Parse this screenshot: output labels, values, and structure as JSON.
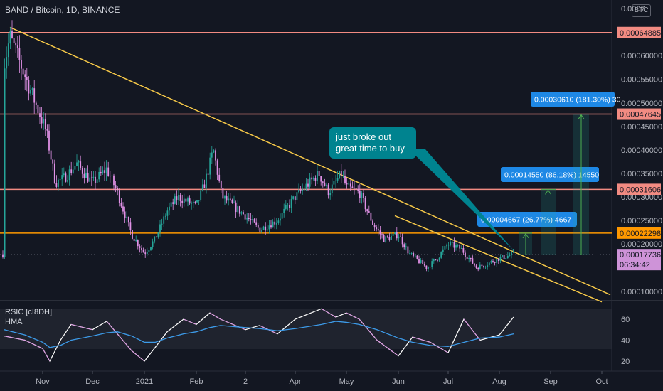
{
  "header": {
    "title": "BAND / Bitcoin, 1D, BINANCE",
    "currency_button": "BTC"
  },
  "indicator": {
    "label1": "RSIC [cI8DH]",
    "label2": "HMA"
  },
  "colors": {
    "background": "#131722",
    "up": "#26a69a",
    "down": "#e091e6",
    "trendline": "#f7c948",
    "resistance": "#f28b82",
    "support": "#ff9800",
    "annotation_bg": "#00838f",
    "measure_bg": "#1e88e5",
    "price_tag": "#ce93d8",
    "hma": "#3d9be9"
  },
  "annotation": {
    "line1": "just broke out",
    "line2": "great time to buy"
  },
  "chart_data": [
    {
      "type": "candlestick",
      "title": "BAND / Bitcoin, 1D, BINANCE",
      "x": [
        "Oct 20",
        "Nov",
        "Dec",
        "2021",
        "Feb",
        "2",
        "Apr",
        "May",
        "Jun",
        "Jul",
        "Aug",
        "Sep",
        "Oct"
      ],
      "xticks": [
        "Nov",
        "Dec",
        "2021",
        "Feb",
        "2",
        "Apr",
        "May",
        "Jun",
        "Jul",
        "Aug",
        "Sep",
        "Oct"
      ],
      "ylim": [
        8e-05,
        0.00068
      ],
      "yticks": [
        "0.0007",
        "0.00060000",
        "0.00055000",
        "0.00050000",
        "0.00045000",
        "0.00040000",
        "0.00035000",
        "0.00030000",
        "0.00025000",
        "0.00020000",
        "0.00010000"
      ],
      "close_path": [
        [
          "Oct 20",
          0.00058
        ],
        [
          "Oct 25",
          0.00064
        ],
        [
          "Nov",
          0.00046
        ],
        [
          "Nov 5",
          0.00044
        ],
        [
          "Nov 12",
          0.00033
        ],
        [
          "Nov 18",
          0.00034
        ],
        [
          "Nov 25",
          0.00037
        ],
        [
          "Dec",
          0.00033
        ],
        [
          "Dec 10",
          0.00036
        ],
        [
          "Dec 18",
          0.00031
        ],
        [
          "Dec 28",
          0.00022
        ],
        [
          "2021",
          0.00018
        ],
        [
          "Jan 8",
          0.00021
        ],
        [
          "Jan 15",
          0.00027
        ],
        [
          "Jan 22",
          0.0003
        ],
        [
          "Feb",
          0.00028
        ],
        [
          "Feb 5",
          0.00033
        ],
        [
          "Feb 10",
          0.0004
        ],
        [
          "Feb 16",
          0.0003
        ],
        [
          "2",
          0.00026
        ],
        [
          "Mar 10",
          0.00023
        ],
        [
          "Mar 20",
          0.00025
        ],
        [
          "Apr",
          0.0003
        ],
        [
          "Apr 8",
          0.00035
        ],
        [
          "Apr 15",
          0.00031
        ],
        [
          "Apr 25",
          0.00035
        ],
        [
          "May",
          0.00032
        ],
        [
          "May 10",
          0.00031
        ],
        [
          "May 18",
          0.00024
        ],
        [
          "May 25",
          0.00021
        ],
        [
          "Jun",
          0.00022
        ],
        [
          "Jun 8",
          0.00018
        ],
        [
          "Jun 18",
          0.00015
        ],
        [
          "Jun 25",
          0.00017
        ],
        [
          "Jul",
          0.0002
        ],
        [
          "Jul 8",
          0.00019
        ],
        [
          "Jul 18",
          0.00015
        ],
        [
          "Jul 25",
          0.00016
        ],
        [
          "Aug",
          0.00017
        ],
        [
          "Aug 8",
          0.000178
        ]
      ],
      "price_levels": [
        {
          "value": "0.00064885",
          "kind": "resistance"
        },
        {
          "value": "0.00047645",
          "kind": "resistance"
        },
        {
          "value": "0.00031606",
          "kind": "resistance"
        },
        {
          "value": "0.00022298",
          "kind": "support"
        }
      ],
      "last_price": {
        "value": "0.00017736",
        "countdown": "06:34:42"
      },
      "measurements": [
        {
          "label": "0.00004667 (26.77%) 4667"
        },
        {
          "label": "0.00014550 (86.18%) 14550"
        },
        {
          "label": "0.00030610 (181.30%) 30"
        }
      ]
    },
    {
      "type": "line",
      "name": "RSIC",
      "ylim": [
        15,
        75
      ],
      "yticks": [
        60,
        40,
        20
      ],
      "band": [
        30,
        70
      ],
      "x": [
        "Oct 20",
        "Oct 28",
        "Nov",
        "Nov 8",
        "Nov 15",
        "Nov 22",
        "Dec",
        "Dec 10",
        "Dec 18",
        "Dec 28",
        "2021",
        "Jan 8",
        "Jan 15",
        "Jan 25",
        "Feb",
        "Feb 8",
        "Feb 15",
        "2",
        "Mar 10",
        "Mar 20",
        "Apr",
        "Apr 10",
        "Apr 20",
        "May",
        "May 10",
        "May 20",
        "Jun",
        "Jun 10",
        "Jun 20",
        "Jul",
        "Jul 10",
        "Jul 20",
        "Aug",
        "Aug 8"
      ],
      "series": [
        {
          "values": [
            44,
            40,
            32,
            20,
            40,
            55,
            50,
            58,
            46,
            30,
            20,
            33,
            48,
            60,
            55,
            66,
            60,
            50,
            54,
            46,
            60,
            70,
            62,
            66,
            60,
            40,
            25,
            43,
            38,
            28,
            60,
            40,
            45,
            62
          ]
        },
        {
          "values": [
            50,
            45,
            38,
            33,
            35,
            40,
            44,
            47,
            48,
            44,
            38,
            38,
            42,
            46,
            48,
            52,
            54,
            52,
            51,
            49,
            51,
            55,
            58,
            57,
            55,
            50,
            42,
            38,
            35,
            34,
            38,
            42,
            43,
            46
          ]
        }
      ]
    }
  ]
}
